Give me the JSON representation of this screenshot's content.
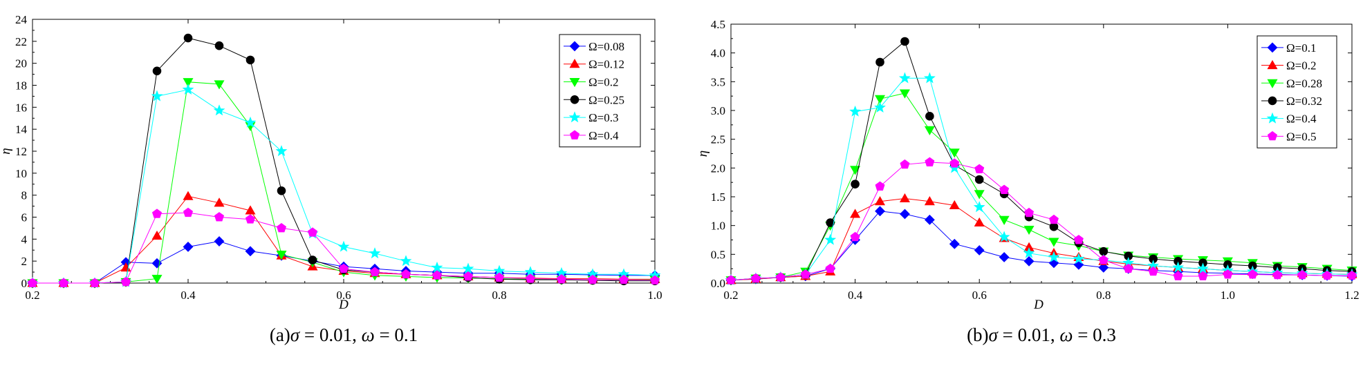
{
  "chart_data": [
    {
      "type": "line",
      "caption": {
        "pre": "(a)",
        "sym1": "σ",
        "mid": " = 0.01, ",
        "sym2": "ω",
        "post": " = 0.1"
      },
      "xlabel": "D",
      "ylabel": "η",
      "xlim": [
        0.2,
        1.0
      ],
      "ylim": [
        0,
        24
      ],
      "xticks": [
        "0.2",
        "0.4",
        "0.6",
        "0.8",
        "1.0"
      ],
      "yticks": [
        "0",
        "2",
        "4",
        "6",
        "8",
        "10",
        "12",
        "14",
        "16",
        "18",
        "20",
        "22",
        "24"
      ],
      "grid": false,
      "legend_position": "top-right",
      "x": [
        0.2,
        0.24,
        0.28,
        0.32,
        0.36,
        0.4,
        0.44,
        0.48,
        0.52,
        0.56,
        0.6,
        0.64,
        0.68,
        0.72,
        0.76,
        0.8,
        0.84,
        0.88,
        0.92,
        0.96,
        1.0
      ],
      "series": [
        {
          "name": "Ω=0.08",
          "color": "#0000ff",
          "marker": "diamond",
          "values": [
            0,
            0,
            0,
            1.9,
            1.8,
            3.3,
            3.8,
            2.9,
            2.5,
            2.0,
            1.5,
            1.3,
            1.1,
            1.0,
            0.9,
            0.9,
            0.8,
            0.8,
            0.75,
            0.7,
            0.7
          ]
        },
        {
          "name": "Ω=0.12",
          "color": "#ff0000",
          "marker": "triangle-up",
          "values": [
            0,
            0,
            0,
            1.4,
            4.3,
            7.9,
            7.3,
            6.6,
            2.5,
            1.5,
            1.1,
            0.9,
            0.8,
            0.7,
            0.6,
            0.5,
            0.45,
            0.4,
            0.4,
            0.35,
            0.35
          ]
        },
        {
          "name": "Ω=0.2",
          "color": "#00ff00",
          "marker": "triangle-down",
          "values": [
            0,
            0,
            0,
            0.1,
            0.4,
            18.3,
            18.1,
            14.3,
            2.6,
            1.9,
            1.0,
            0.7,
            0.6,
            0.5,
            0.45,
            0.4,
            0.35,
            0.3,
            0.3,
            0.3,
            0.3
          ]
        },
        {
          "name": "Ω=0.25",
          "color": "#000000",
          "marker": "circle",
          "values": [
            0,
            0,
            0,
            0.1,
            19.3,
            22.3,
            21.6,
            20.3,
            8.4,
            2.1,
            1.2,
            1.0,
            0.8,
            0.7,
            0.5,
            0.35,
            0.3,
            0.3,
            0.25,
            0.2,
            0.2
          ]
        },
        {
          "name": "Ω=0.3",
          "color": "#00ffff",
          "marker": "star",
          "values": [
            0,
            0,
            0,
            0.1,
            17.0,
            17.6,
            15.7,
            14.6,
            12.0,
            4.5,
            3.3,
            2.7,
            2.0,
            1.4,
            1.3,
            1.1,
            1.0,
            0.9,
            0.8,
            0.8,
            0.7
          ]
        },
        {
          "name": "Ω=0.4",
          "color": "#ff00ff",
          "marker": "pentagon",
          "values": [
            0,
            0,
            0,
            0.1,
            6.3,
            6.4,
            6.0,
            5.8,
            5.0,
            4.6,
            1.3,
            1.0,
            0.8,
            0.7,
            0.6,
            0.5,
            0.4,
            0.35,
            0.3,
            0.3,
            0.25
          ]
        }
      ]
    },
    {
      "type": "line",
      "caption": {
        "pre": "(b)",
        "sym1": "σ",
        "mid": " = 0.01, ",
        "sym2": "ω",
        "post": " = 0.3"
      },
      "xlabel": "D",
      "ylabel": "η",
      "xlim": [
        0.2,
        1.2
      ],
      "ylim": [
        0,
        4.5
      ],
      "xticks": [
        "0.2",
        "0.4",
        "0.6",
        "0.8",
        "1.0",
        "1.2"
      ],
      "yticks": [
        "0.0",
        "0.5",
        "1.0",
        "1.5",
        "2.0",
        "2.5",
        "3.0",
        "3.5",
        "4.0",
        "4.5"
      ],
      "grid": false,
      "legend_position": "top-right",
      "x": [
        0.2,
        0.24,
        0.28,
        0.32,
        0.36,
        0.4,
        0.44,
        0.48,
        0.52,
        0.56,
        0.6,
        0.64,
        0.68,
        0.72,
        0.76,
        0.8,
        0.84,
        0.88,
        0.92,
        0.96,
        1.0,
        1.04,
        1.08,
        1.12,
        1.16,
        1.2
      ],
      "series": [
        {
          "name": "Ω=0.1",
          "color": "#0000ff",
          "marker": "diamond",
          "values": [
            0.05,
            0.07,
            0.1,
            0.12,
            0.25,
            0.75,
            1.25,
            1.2,
            1.1,
            0.68,
            0.57,
            0.45,
            0.38,
            0.35,
            0.32,
            0.27,
            0.25,
            0.22,
            0.2,
            0.18,
            0.17,
            0.16,
            0.15,
            0.14,
            0.13,
            0.12
          ]
        },
        {
          "name": "Ω=0.2",
          "color": "#ff0000",
          "marker": "triangle-up",
          "values": [
            0.05,
            0.07,
            0.1,
            0.12,
            0.2,
            1.2,
            1.42,
            1.47,
            1.42,
            1.35,
            1.05,
            0.78,
            0.62,
            0.52,
            0.45,
            0.38,
            0.33,
            0.3,
            0.27,
            0.25,
            0.22,
            0.2,
            0.18,
            0.17,
            0.16,
            0.15
          ]
        },
        {
          "name": "Ω=0.28",
          "color": "#00ff00",
          "marker": "triangle-down",
          "values": [
            0.05,
            0.08,
            0.1,
            0.2,
            1.0,
            1.97,
            3.2,
            3.3,
            2.66,
            2.27,
            1.55,
            1.1,
            0.93,
            0.72,
            0.65,
            0.55,
            0.48,
            0.45,
            0.42,
            0.4,
            0.38,
            0.35,
            0.3,
            0.28,
            0.25,
            0.22
          ]
        },
        {
          "name": "Ω=0.32",
          "color": "#000000",
          "marker": "circle",
          "values": [
            0.05,
            0.08,
            0.1,
            0.15,
            1.05,
            1.72,
            3.84,
            4.2,
            2.9,
            2.05,
            1.8,
            1.55,
            1.15,
            0.98,
            0.7,
            0.55,
            0.47,
            0.42,
            0.38,
            0.35,
            0.32,
            0.3,
            0.27,
            0.25,
            0.22,
            0.2
          ]
        },
        {
          "name": "Ω=0.4",
          "color": "#00ffff",
          "marker": "star",
          "values": [
            0.05,
            0.08,
            0.1,
            0.15,
            0.75,
            2.98,
            3.05,
            3.56,
            3.56,
            2.0,
            1.32,
            0.8,
            0.52,
            0.45,
            0.42,
            0.4,
            0.35,
            0.3,
            0.27,
            0.25,
            0.22,
            0.2,
            0.18,
            0.17,
            0.16,
            0.15
          ]
        },
        {
          "name": "Ω=0.5",
          "color": "#ff00ff",
          "marker": "pentagon",
          "values": [
            0.05,
            0.08,
            0.1,
            0.15,
            0.25,
            0.8,
            1.68,
            2.06,
            2.1,
            2.08,
            1.98,
            1.62,
            1.22,
            1.1,
            0.75,
            0.4,
            0.25,
            0.2,
            0.12,
            0.12,
            0.15,
            0.15,
            0.14,
            0.14,
            0.13,
            0.13
          ]
        }
      ]
    }
  ]
}
